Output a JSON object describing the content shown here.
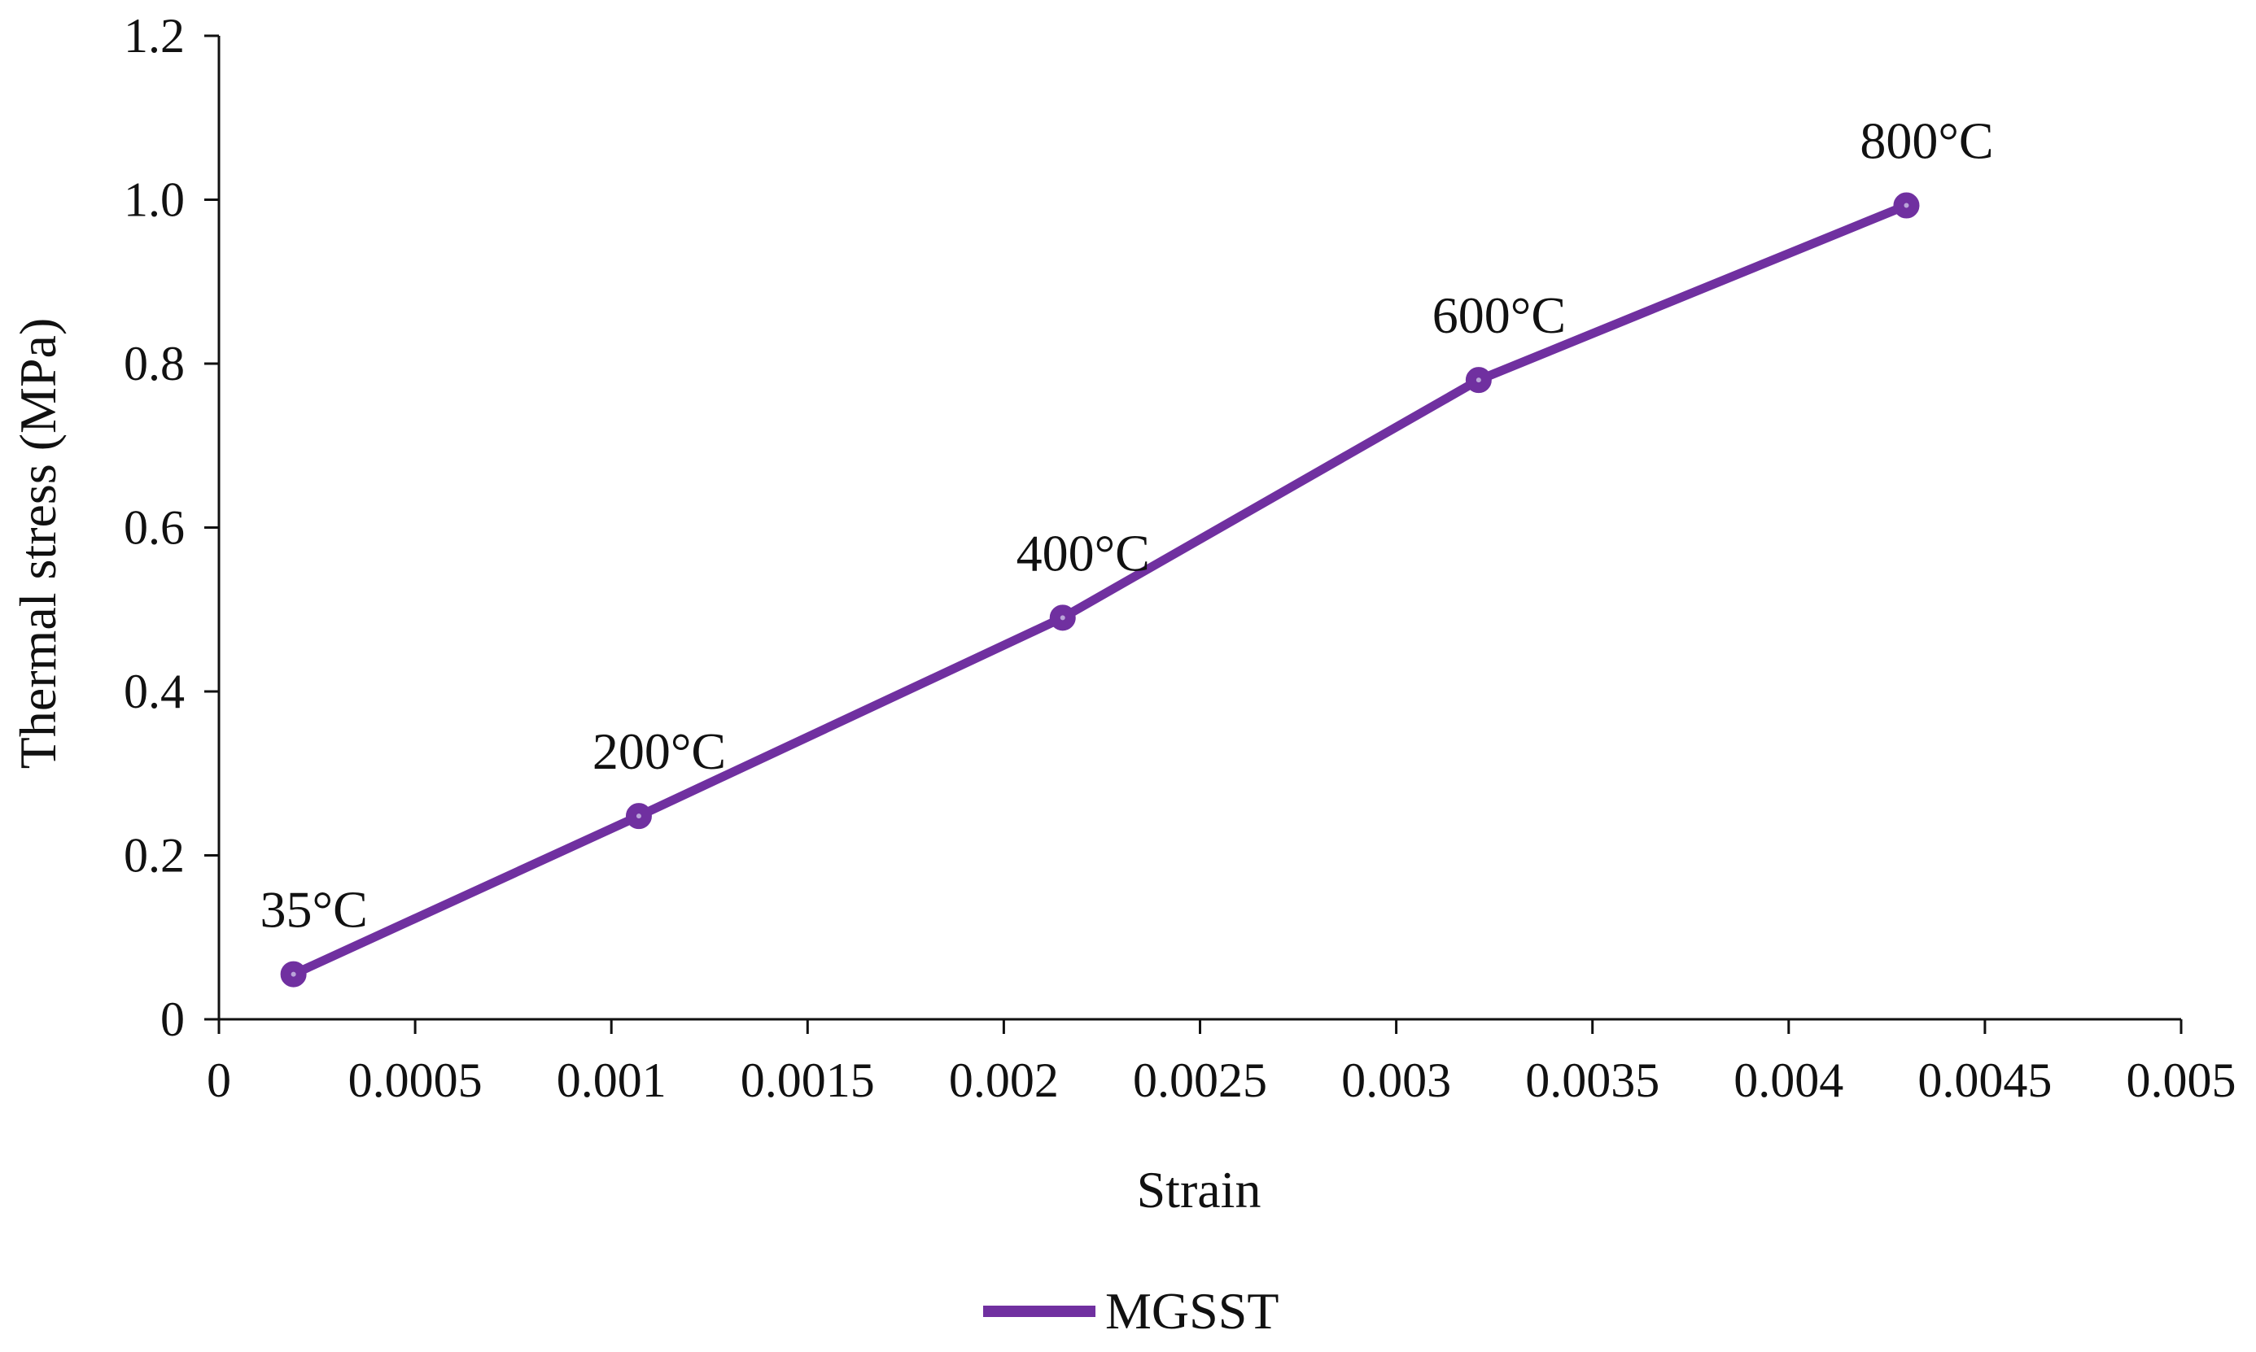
{
  "chart_data": {
    "type": "line",
    "title": "",
    "xlabel": "Strain",
    "ylabel": "Thermal stress (MPa)",
    "xlim": [
      0,
      0.005
    ],
    "ylim": [
      0,
      1.2
    ],
    "x_ticks": [
      {
        "value": 0,
        "label": "0"
      },
      {
        "value": 0.0005,
        "label": "0.0005"
      },
      {
        "value": 0.001,
        "label": "0.001"
      },
      {
        "value": 0.0015,
        "label": "0.0015"
      },
      {
        "value": 0.002,
        "label": "0.002"
      },
      {
        "value": 0.0025,
        "label": "0.0025"
      },
      {
        "value": 0.003,
        "label": "0.003"
      },
      {
        "value": 0.0035,
        "label": "0.0035"
      },
      {
        "value": 0.004,
        "label": "0.004"
      },
      {
        "value": 0.0045,
        "label": "0.0045"
      },
      {
        "value": 0.005,
        "label": "0.005"
      }
    ],
    "y_ticks": [
      {
        "value": 0,
        "label": "0"
      },
      {
        "value": 0.2,
        "label": "0.2"
      },
      {
        "value": 0.4,
        "label": "0.4"
      },
      {
        "value": 0.6,
        "label": "0.6"
      },
      {
        "value": 0.8,
        "label": "0.8"
      },
      {
        "value": 1.0,
        "label": "1.0"
      },
      {
        "value": 1.2,
        "label": "1.2"
      }
    ],
    "grid": false,
    "legend_position": "bottom-center",
    "series": [
      {
        "name": "MGSST",
        "color": "#7030A0",
        "points": [
          {
            "x": 0.00019,
            "y": 0.055,
            "label": "35°C"
          },
          {
            "x": 0.00107,
            "y": 0.248,
            "label": "200°C"
          },
          {
            "x": 0.00215,
            "y": 0.49,
            "label": "400°C"
          },
          {
            "x": 0.00321,
            "y": 0.78,
            "label": "600°C"
          },
          {
            "x": 0.0043,
            "y": 0.993,
            "label": "800°C"
          }
        ]
      }
    ]
  }
}
